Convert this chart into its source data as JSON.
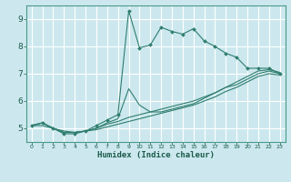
{
  "xlabel": "Humidex (Indice chaleur)",
  "ylabel": "",
  "bg_color": "#cce8ee",
  "grid_color": "#ffffff",
  "line_color": "#2e7d6e",
  "xlim": [
    -0.5,
    23.5
  ],
  "ylim": [
    4.5,
    9.5
  ],
  "xticks": [
    0,
    1,
    2,
    3,
    4,
    5,
    6,
    7,
    8,
    9,
    10,
    11,
    12,
    13,
    14,
    15,
    16,
    17,
    18,
    19,
    20,
    21,
    22,
    23
  ],
  "yticks": [
    5,
    6,
    7,
    8,
    9
  ],
  "curves": [
    {
      "x": [
        0,
        1,
        2,
        3,
        4,
        5,
        6,
        7,
        8,
        9,
        10,
        11,
        12,
        13,
        14,
        15,
        16,
        17,
        18,
        19,
        20,
        21,
        22,
        23
      ],
      "y": [
        5.1,
        5.2,
        5.0,
        4.8,
        4.8,
        4.9,
        5.1,
        5.3,
        5.5,
        9.3,
        7.95,
        8.05,
        8.7,
        8.55,
        8.45,
        8.65,
        8.2,
        8.0,
        7.75,
        7.6,
        7.2,
        7.2,
        7.2,
        7.0
      ],
      "marker": true
    },
    {
      "x": [
        0,
        1,
        2,
        3,
        4,
        5,
        6,
        7,
        8,
        9,
        10,
        11,
        12,
        13,
        14,
        15,
        16,
        17,
        18,
        19,
        20,
        21,
        22,
        23
      ],
      "y": [
        5.1,
        5.2,
        5.0,
        4.85,
        4.85,
        4.9,
        5.0,
        5.2,
        5.35,
        6.45,
        5.85,
        5.6,
        5.6,
        5.7,
        5.8,
        5.9,
        6.1,
        6.3,
        6.5,
        6.7,
        6.9,
        7.1,
        7.15,
        7.05
      ],
      "marker": false
    },
    {
      "x": [
        0,
        1,
        2,
        3,
        4,
        5,
        6,
        7,
        8,
        9,
        10,
        11,
        12,
        13,
        14,
        15,
        16,
        17,
        18,
        19,
        20,
        21,
        22,
        23
      ],
      "y": [
        5.1,
        5.2,
        5.0,
        4.85,
        4.85,
        4.9,
        5.0,
        5.15,
        5.25,
        5.4,
        5.5,
        5.6,
        5.7,
        5.8,
        5.9,
        6.0,
        6.15,
        6.3,
        6.5,
        6.6,
        6.8,
        7.0,
        7.1,
        7.0
      ],
      "marker": false
    },
    {
      "x": [
        0,
        1,
        2,
        3,
        4,
        5,
        6,
        7,
        8,
        9,
        10,
        11,
        12,
        13,
        14,
        15,
        16,
        17,
        18,
        19,
        20,
        21,
        22,
        23
      ],
      "y": [
        5.1,
        5.1,
        5.0,
        4.9,
        4.85,
        4.9,
        4.95,
        5.05,
        5.15,
        5.25,
        5.35,
        5.45,
        5.55,
        5.65,
        5.75,
        5.85,
        6.0,
        6.15,
        6.35,
        6.5,
        6.7,
        6.9,
        7.0,
        6.95
      ],
      "marker": false
    }
  ]
}
